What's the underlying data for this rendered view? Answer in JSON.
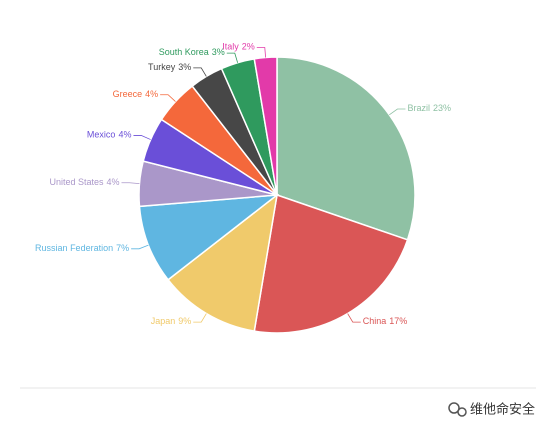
{
  "chart_data": {
    "type": "pie",
    "categories": [
      "Brazil",
      "China",
      "Japan",
      "Russian Federation",
      "United States",
      "Mexico",
      "Greece",
      "Turkey",
      "South Korea",
      "Italy"
    ],
    "values": [
      23,
      17,
      9,
      7,
      4,
      4,
      4,
      3,
      3,
      2
    ],
    "value_labels": [
      "23%",
      "17%",
      "9%",
      "7%",
      "4%",
      "4%",
      "4%",
      "3%",
      "3%",
      "2%"
    ],
    "colors": [
      "#8fc1a4",
      "#da5656",
      "#f0ca6b",
      "#5fb6e1",
      "#aa97c9",
      "#6a4fd8",
      "#f4683b",
      "#474747",
      "#2f9a5e",
      "#e23aa9"
    ]
  },
  "watermark": "维他命安全"
}
